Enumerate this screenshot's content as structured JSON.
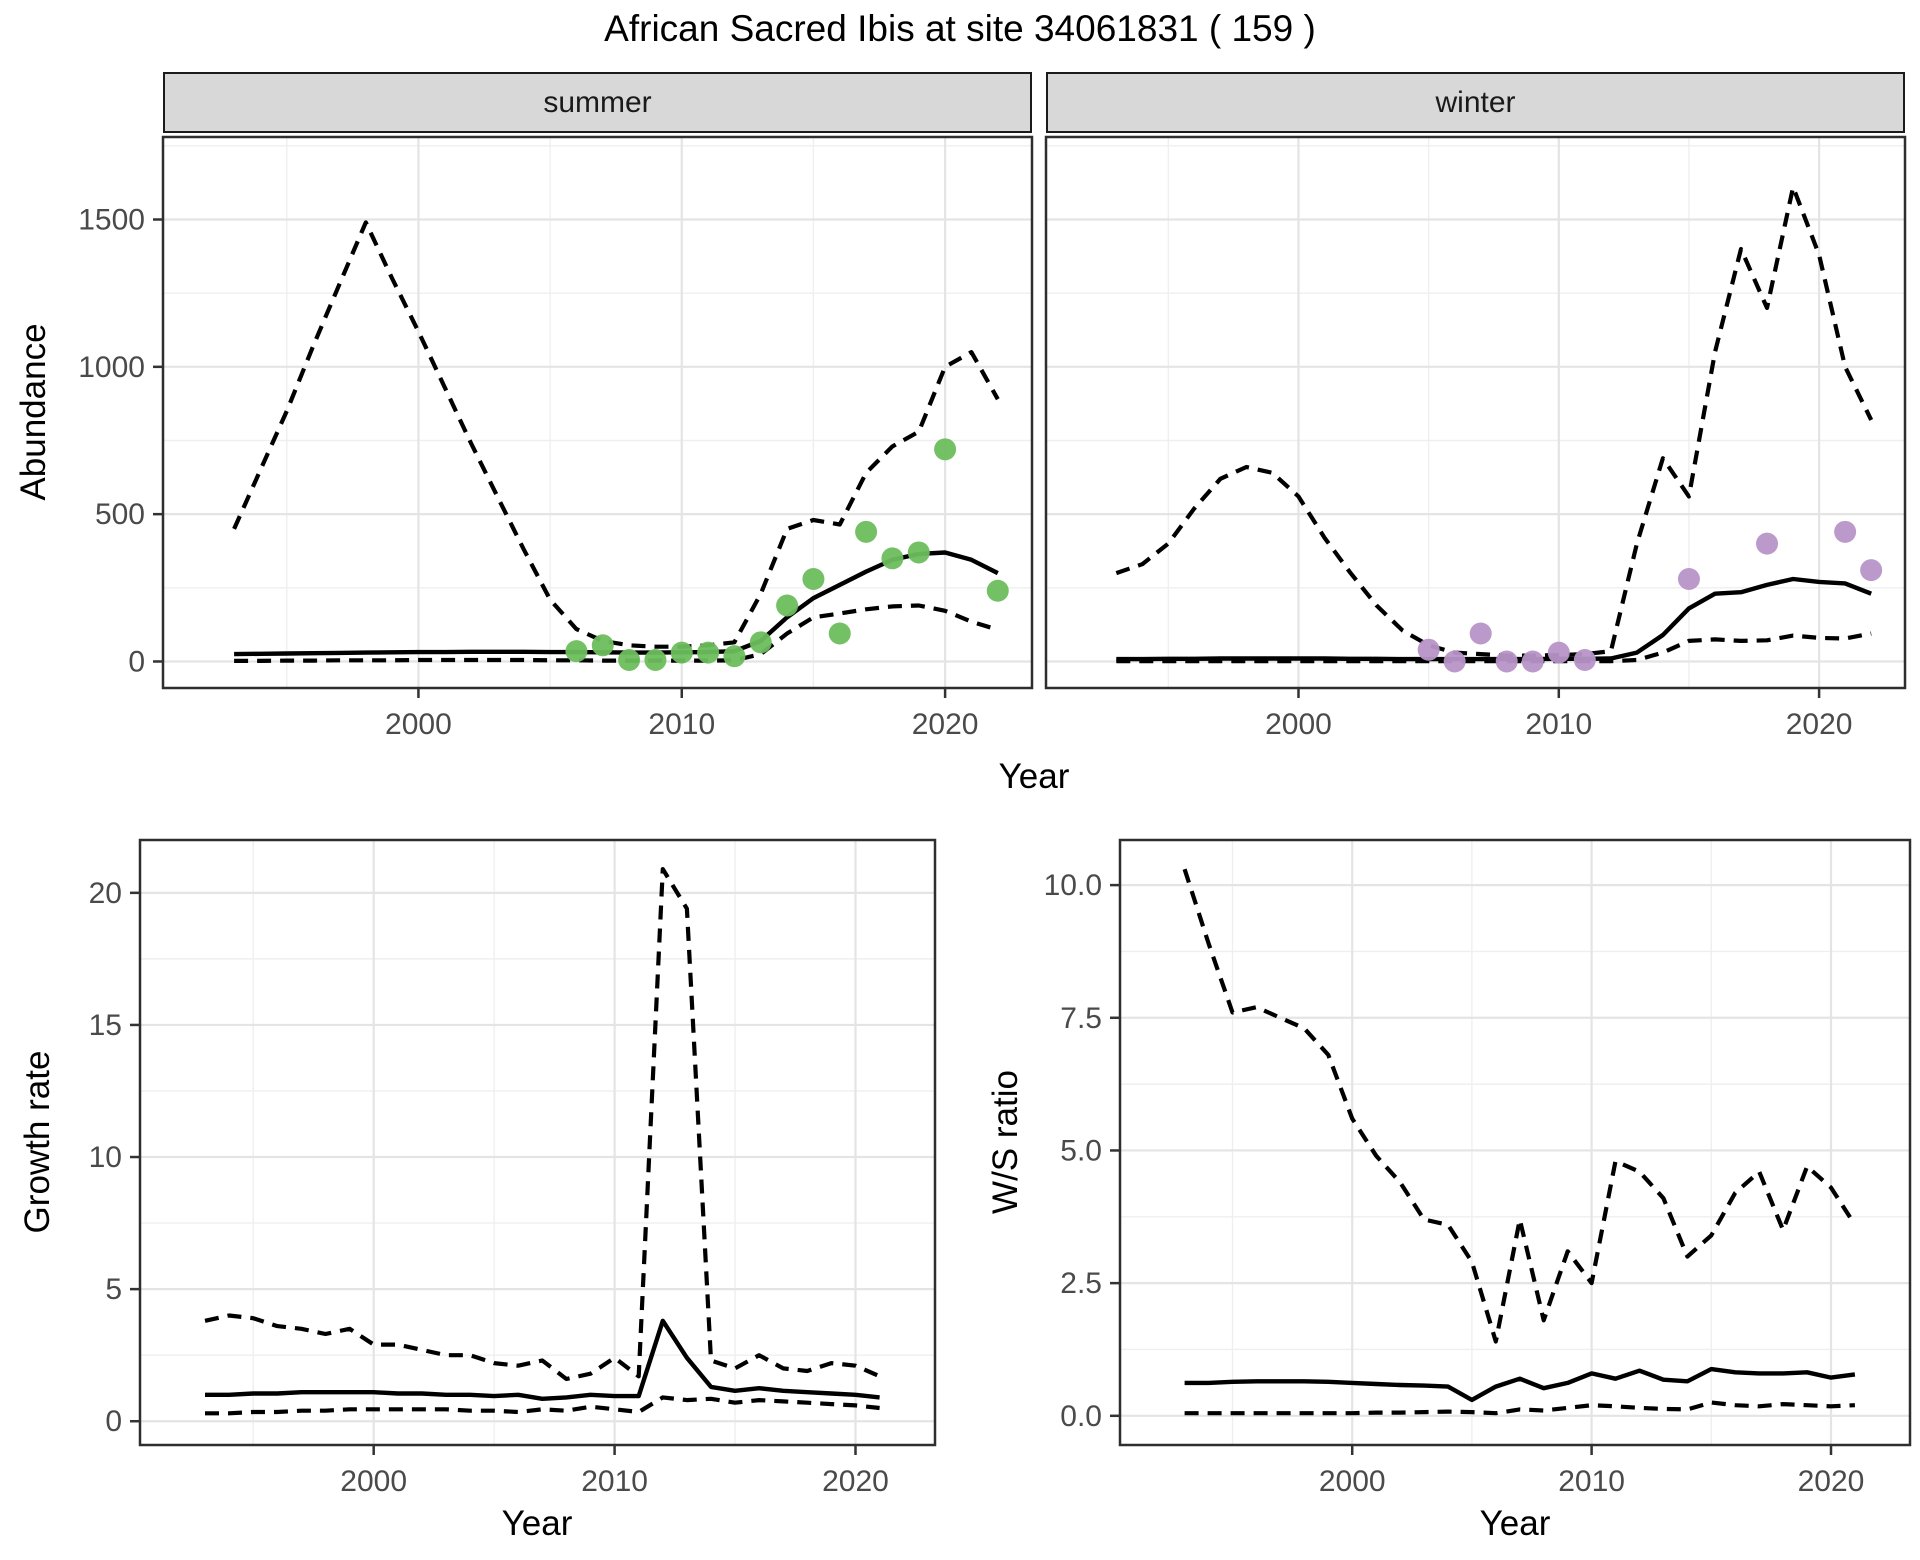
{
  "title": "African Sacred Ibis at site 34061831 ( 159 )",
  "colors": {
    "strip_background": "#d8d8d8",
    "panel_border": "#2e2e2e",
    "grid_major": "#e4e4e4",
    "grid_minor": "#efefef",
    "line_color": "#000000",
    "tick_label_color": "#4a4a4a",
    "observed_summer_point": "#6cbe5c",
    "observed_winter_point": "#b795c8"
  },
  "chart_data": [
    {
      "id": "abundance-summer",
      "type": "line",
      "facet": "summer",
      "title_x": "Year",
      "title_y": "Abundance",
      "xlim": [
        1990.3,
        2023.3
      ],
      "ylim": [
        -90,
        1780
      ],
      "x_ticks": [
        2000,
        2010,
        2020
      ],
      "x_tick_labels": [
        "2000",
        "2010",
        "2020"
      ],
      "y_ticks": [
        0,
        500,
        1000,
        1500
      ],
      "y_tick_labels": [
        "0",
        "500",
        "1000",
        "1500"
      ],
      "years": [
        1993,
        1994,
        1995,
        1996,
        1997,
        1998,
        1999,
        2000,
        2001,
        2002,
        2003,
        2004,
        2005,
        2006,
        2007,
        2008,
        2009,
        2010,
        2011,
        2012,
        2013,
        2014,
        2015,
        2016,
        2017,
        2018,
        2019,
        2020,
        2021,
        2022
      ],
      "series": [
        {
          "name": "upper_ci",
          "style": "dashed",
          "values": [
            450,
            650,
            850,
            1070,
            1280,
            1490,
            1300,
            1120,
            930,
            740,
            560,
            380,
            210,
            110,
            70,
            55,
            50,
            50,
            55,
            65,
            230,
            450,
            480,
            465,
            640,
            730,
            780,
            1000,
            1050,
            890
          ]
        },
        {
          "name": "median_fit",
          "style": "solid",
          "values": [
            25,
            26,
            27,
            28,
            29,
            30,
            31,
            32,
            32,
            33,
            33,
            33,
            32,
            32,
            31,
            30,
            30,
            31,
            32,
            35,
            70,
            150,
            215,
            260,
            305,
            345,
            365,
            370,
            345,
            300
          ]
        },
        {
          "name": "lower_ci",
          "style": "dashed",
          "values": [
            2,
            2,
            3,
            3,
            4,
            4,
            4,
            5,
            5,
            5,
            5,
            5,
            4,
            4,
            3,
            3,
            3,
            3,
            3,
            4,
            25,
            95,
            150,
            163,
            177,
            187,
            190,
            172,
            135,
            108
          ]
        }
      ],
      "observations": {
        "color": "#6cbe5c",
        "points": [
          [
            2006,
            35
          ],
          [
            2007,
            55
          ],
          [
            2008,
            5
          ],
          [
            2009,
            5
          ],
          [
            2010,
            30
          ],
          [
            2011,
            30
          ],
          [
            2012,
            18
          ],
          [
            2013,
            65
          ],
          [
            2014,
            190
          ],
          [
            2015,
            280
          ],
          [
            2016,
            95
          ],
          [
            2017,
            440
          ],
          [
            2018,
            350
          ],
          [
            2019,
            370
          ],
          [
            2020,
            720
          ],
          [
            2022,
            240
          ]
        ]
      }
    },
    {
      "id": "abundance-winter",
      "type": "line",
      "facet": "winter",
      "title_x": "Year",
      "title_y": "Abundance",
      "xlim": [
        1990.3,
        2023.3
      ],
      "ylim": [
        -90,
        1780
      ],
      "x_ticks": [
        2000,
        2010,
        2020
      ],
      "x_tick_labels": [
        "2000",
        "2010",
        "2020"
      ],
      "y_ticks": [
        0,
        500,
        1000,
        1500
      ],
      "y_tick_labels": [],
      "years": [
        1993,
        1994,
        1995,
        1996,
        1997,
        1998,
        1999,
        2000,
        2001,
        2002,
        2003,
        2004,
        2005,
        2006,
        2007,
        2008,
        2009,
        2010,
        2011,
        2012,
        2013,
        2014,
        2015,
        2016,
        2017,
        2018,
        2019,
        2020,
        2021,
        2022
      ],
      "series": [
        {
          "name": "upper_ci",
          "style": "dashed",
          "values": [
            300,
            330,
            400,
            520,
            620,
            660,
            640,
            560,
            420,
            300,
            190,
            105,
            55,
            30,
            25,
            20,
            20,
            22,
            25,
            35,
            400,
            690,
            560,
            1050,
            1400,
            1200,
            1610,
            1380,
            1000,
            820
          ]
        },
        {
          "name": "median_fit",
          "style": "solid",
          "values": [
            8,
            8,
            9,
            9,
            10,
            10,
            10,
            10,
            10,
            9,
            9,
            8,
            8,
            8,
            8,
            8,
            8,
            9,
            9,
            10,
            30,
            90,
            180,
            230,
            235,
            260,
            280,
            270,
            265,
            230
          ]
        },
        {
          "name": "lower_ci",
          "style": "dashed",
          "values": [
            1,
            1,
            1,
            1,
            1,
            1,
            1,
            1,
            1,
            1,
            1,
            1,
            1,
            1,
            1,
            1,
            1,
            1,
            1,
            1,
            5,
            30,
            70,
            75,
            70,
            72,
            88,
            80,
            78,
            95
          ]
        }
      ],
      "observations": {
        "color": "#b795c8",
        "points": [
          [
            2005,
            40
          ],
          [
            2006,
            0
          ],
          [
            2007,
            95
          ],
          [
            2008,
            0
          ],
          [
            2009,
            0
          ],
          [
            2010,
            30
          ],
          [
            2011,
            5
          ],
          [
            2015,
            280
          ],
          [
            2018,
            400
          ],
          [
            2021,
            440
          ],
          [
            2022,
            310
          ]
        ]
      }
    },
    {
      "id": "growth-rate",
      "type": "line",
      "facet": null,
      "title_x": "Year",
      "title_y": "Growth rate",
      "xlim": [
        1990.3,
        2023.3
      ],
      "ylim": [
        -0.9,
        22
      ],
      "x_ticks": [
        2000,
        2010,
        2020
      ],
      "x_tick_labels": [
        "2000",
        "2010",
        "2020"
      ],
      "y_ticks": [
        0,
        5,
        10,
        15,
        20
      ],
      "y_tick_labels": [
        "0",
        "5",
        "10",
        "15",
        "20"
      ],
      "years": [
        1993,
        1994,
        1995,
        1996,
        1997,
        1998,
        1999,
        2000,
        2001,
        2002,
        2003,
        2004,
        2005,
        2006,
        2007,
        2008,
        2009,
        2010,
        2011,
        2012,
        2013,
        2014,
        2015,
        2016,
        2017,
        2018,
        2019,
        2020,
        2021
      ],
      "series": [
        {
          "name": "upper_ci",
          "style": "dashed",
          "values": [
            3.8,
            4.0,
            3.9,
            3.6,
            3.5,
            3.3,
            3.5,
            2.9,
            2.9,
            2.7,
            2.5,
            2.5,
            2.2,
            2.1,
            2.3,
            1.6,
            1.8,
            2.4,
            1.7,
            20.9,
            19.4,
            2.3,
            2.0,
            2.5,
            2.0,
            1.9,
            2.2,
            2.1,
            1.7
          ]
        },
        {
          "name": "median_fit",
          "style": "solid",
          "values": [
            1.0,
            1.0,
            1.05,
            1.05,
            1.1,
            1.1,
            1.1,
            1.1,
            1.05,
            1.05,
            1.0,
            1.0,
            0.95,
            1.0,
            0.85,
            0.9,
            1.0,
            0.95,
            0.95,
            3.8,
            2.4,
            1.3,
            1.15,
            1.25,
            1.15,
            1.1,
            1.05,
            1.0,
            0.9
          ]
        },
        {
          "name": "lower_ci",
          "style": "dashed",
          "values": [
            0.3,
            0.3,
            0.35,
            0.35,
            0.4,
            0.4,
            0.45,
            0.45,
            0.45,
            0.45,
            0.45,
            0.4,
            0.4,
            0.35,
            0.45,
            0.4,
            0.55,
            0.45,
            0.35,
            0.9,
            0.8,
            0.85,
            0.7,
            0.8,
            0.75,
            0.7,
            0.65,
            0.6,
            0.5
          ]
        }
      ],
      "observations": {
        "color": null,
        "points": []
      }
    },
    {
      "id": "ws-ratio",
      "type": "line",
      "facet": null,
      "title_x": "Year",
      "title_y": "W/S ratio",
      "xlim": [
        1990.3,
        2023.3
      ],
      "ylim": [
        -0.55,
        10.85
      ],
      "x_ticks": [
        2000,
        2010,
        2020
      ],
      "x_tick_labels": [
        "2000",
        "2010",
        "2020"
      ],
      "y_ticks": [
        0,
        2.5,
        5,
        7.5,
        10
      ],
      "y_tick_labels": [
        "0.0",
        "2.5",
        "5.0",
        "7.5",
        "10.0"
      ],
      "years": [
        1993,
        1994,
        1995,
        1996,
        1997,
        1998,
        1999,
        2000,
        2001,
        2002,
        2003,
        2004,
        2005,
        2006,
        2007,
        2008,
        2009,
        2010,
        2011,
        2012,
        2013,
        2014,
        2015,
        2016,
        2017,
        2018,
        2019,
        2020,
        2021
      ],
      "series": [
        {
          "name": "upper_ci",
          "style": "dashed",
          "values": [
            10.3,
            8.9,
            7.6,
            7.7,
            7.5,
            7.3,
            6.8,
            5.6,
            4.9,
            4.4,
            3.7,
            3.6,
            2.9,
            1.4,
            3.7,
            1.8,
            3.1,
            2.5,
            4.8,
            4.6,
            4.1,
            3.0,
            3.4,
            4.2,
            4.6,
            3.5,
            4.7,
            4.3,
            3.6
          ]
        },
        {
          "name": "median_fit",
          "style": "solid",
          "values": [
            0.62,
            0.62,
            0.64,
            0.65,
            0.65,
            0.65,
            0.64,
            0.62,
            0.6,
            0.58,
            0.57,
            0.55,
            0.3,
            0.55,
            0.7,
            0.52,
            0.62,
            0.8,
            0.7,
            0.85,
            0.68,
            0.65,
            0.88,
            0.82,
            0.8,
            0.8,
            0.82,
            0.72,
            0.78
          ]
        },
        {
          "name": "lower_ci",
          "style": "dashed",
          "values": [
            0.05,
            0.05,
            0.05,
            0.05,
            0.05,
            0.05,
            0.05,
            0.05,
            0.06,
            0.06,
            0.07,
            0.08,
            0.07,
            0.05,
            0.12,
            0.1,
            0.15,
            0.2,
            0.18,
            0.15,
            0.13,
            0.12,
            0.25,
            0.2,
            0.18,
            0.22,
            0.2,
            0.18,
            0.2
          ]
        }
      ],
      "observations": {
        "color": null,
        "points": []
      }
    }
  ]
}
